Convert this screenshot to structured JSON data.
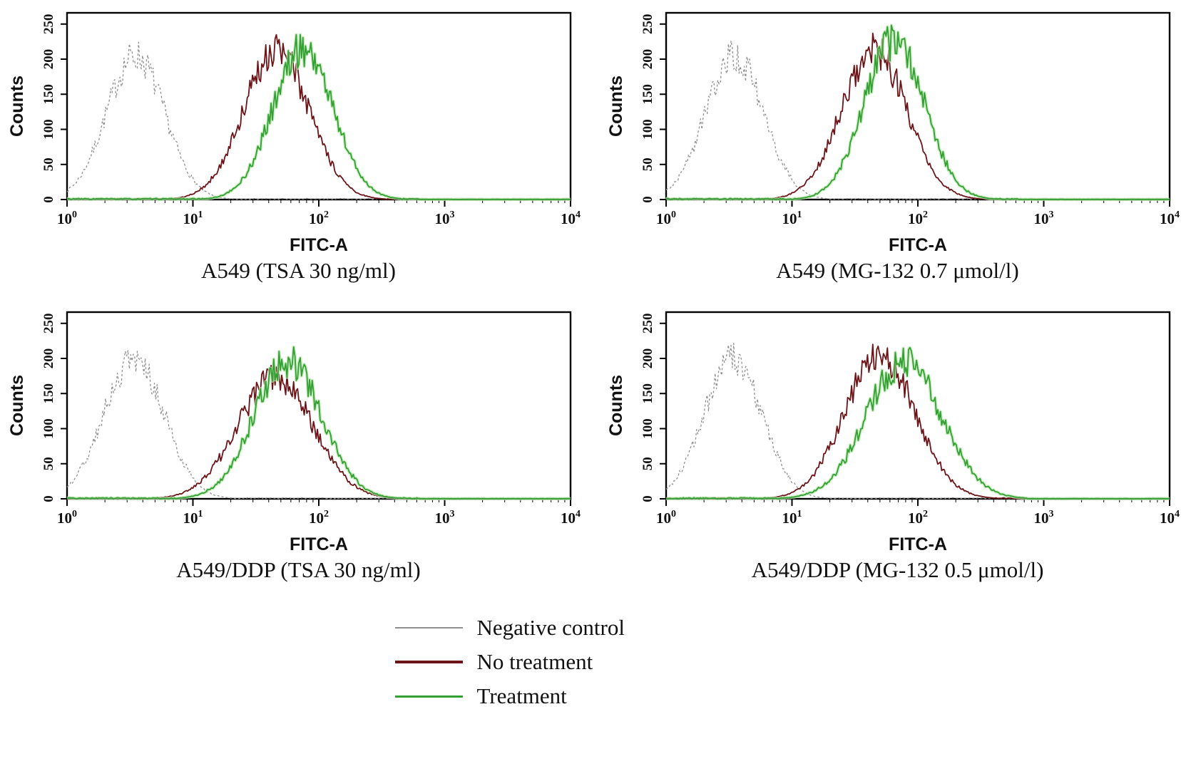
{
  "figure": {
    "description": "Flow cytometry FITC-A histograms for A549 and A549/DDP cells with TSA or MG-132 treatment"
  },
  "chart_data": [
    {
      "type": "line",
      "variant": "flow-cytometry-histogram",
      "title": "A549 (TSA 30 ng/ml)",
      "xlabel": "FITC-A",
      "ylabel": "Counts",
      "x_scale": "log10",
      "x_range": [
        1,
        10000
      ],
      "xtick_exponents": [
        0,
        1,
        2,
        3,
        4
      ],
      "ylim": [
        0,
        250
      ],
      "yticks": [
        0,
        50,
        100,
        150,
        200,
        250
      ],
      "grid": false,
      "series": [
        {
          "name": "Negative control",
          "color": "#8f8f8f",
          "style": "dashed",
          "peak_x": 3.5,
          "peak_count": 205,
          "log_sigma": 0.23
        },
        {
          "name": "No treatment",
          "color": "#6d1418",
          "style": "solid",
          "peak_x": 46,
          "peak_count": 212,
          "log_sigma": 0.26
        },
        {
          "name": "Treatment",
          "color": "#33a033",
          "style": "solid-glow",
          "peak_x": 75,
          "peak_count": 215,
          "log_sigma": 0.24
        }
      ]
    },
    {
      "type": "line",
      "variant": "flow-cytometry-histogram",
      "title": "A549 (MG-132 0.7 μmol/l)",
      "xlabel": "FITC-A",
      "ylabel": "Counts",
      "x_scale": "log10",
      "x_range": [
        1,
        10000
      ],
      "xtick_exponents": [
        0,
        1,
        2,
        3,
        4
      ],
      "ylim": [
        0,
        250
      ],
      "yticks": [
        0,
        50,
        100,
        150,
        200,
        250
      ],
      "grid": false,
      "series": [
        {
          "name": "Negative control",
          "color": "#8f8f8f",
          "style": "dashed",
          "peak_x": 3.5,
          "peak_count": 205,
          "log_sigma": 0.23
        },
        {
          "name": "No treatment",
          "color": "#6d1418",
          "style": "solid",
          "peak_x": 45,
          "peak_count": 212,
          "log_sigma": 0.26
        },
        {
          "name": "Treatment",
          "color": "#33a033",
          "style": "solid-glow",
          "peak_x": 65,
          "peak_count": 226,
          "log_sigma": 0.24
        }
      ]
    },
    {
      "type": "line",
      "variant": "flow-cytometry-histogram",
      "title": "A549/DDP (TSA 30 ng/ml)",
      "xlabel": "FITC-A",
      "ylabel": "Counts",
      "x_scale": "log10",
      "x_range": [
        1,
        10000
      ],
      "xtick_exponents": [
        0,
        1,
        2,
        3,
        4
      ],
      "ylim": [
        0,
        250
      ],
      "yticks": [
        0,
        50,
        100,
        150,
        200,
        250
      ],
      "grid": false,
      "series": [
        {
          "name": "Negative control",
          "color": "#8f8f8f",
          "style": "dashed",
          "peak_x": 3.4,
          "peak_count": 200,
          "log_sigma": 0.24
        },
        {
          "name": "No treatment",
          "color": "#6d1418",
          "style": "solid",
          "peak_x": 45,
          "peak_count": 172,
          "log_sigma": 0.3
        },
        {
          "name": "Treatment",
          "color": "#33a033",
          "style": "solid-glow",
          "peak_x": 57,
          "peak_count": 196,
          "log_sigma": 0.27
        }
      ]
    },
    {
      "type": "line",
      "variant": "flow-cytometry-histogram",
      "title": "A549/DDP (MG-132 0.5 μmol/l)",
      "xlabel": "FITC-A",
      "ylabel": "Counts",
      "x_scale": "log10",
      "x_range": [
        1,
        10000
      ],
      "xtick_exponents": [
        0,
        1,
        2,
        3,
        4
      ],
      "ylim": [
        0,
        250
      ],
      "yticks": [
        0,
        50,
        100,
        150,
        200,
        250
      ],
      "grid": false,
      "series": [
        {
          "name": "Negative control",
          "color": "#8f8f8f",
          "style": "dashed",
          "peak_x": 3.4,
          "peak_count": 200,
          "log_sigma": 0.23
        },
        {
          "name": "No treatment",
          "color": "#6d1418",
          "style": "solid",
          "peak_x": 50,
          "peak_count": 205,
          "log_sigma": 0.28
        },
        {
          "name": "Treatment",
          "color": "#33a033",
          "style": "solid-glow",
          "peak_x": 78,
          "peak_count": 195,
          "log_sigma": 0.3
        }
      ]
    }
  ],
  "legend": {
    "items": [
      {
        "label": "Negative control",
        "color": "#8f8f8f",
        "weight": 2
      },
      {
        "label": "No treatment",
        "color": "#6d1418",
        "weight": 4
      },
      {
        "label": "Treatment",
        "color": "#33a033",
        "weight": 3
      }
    ]
  }
}
